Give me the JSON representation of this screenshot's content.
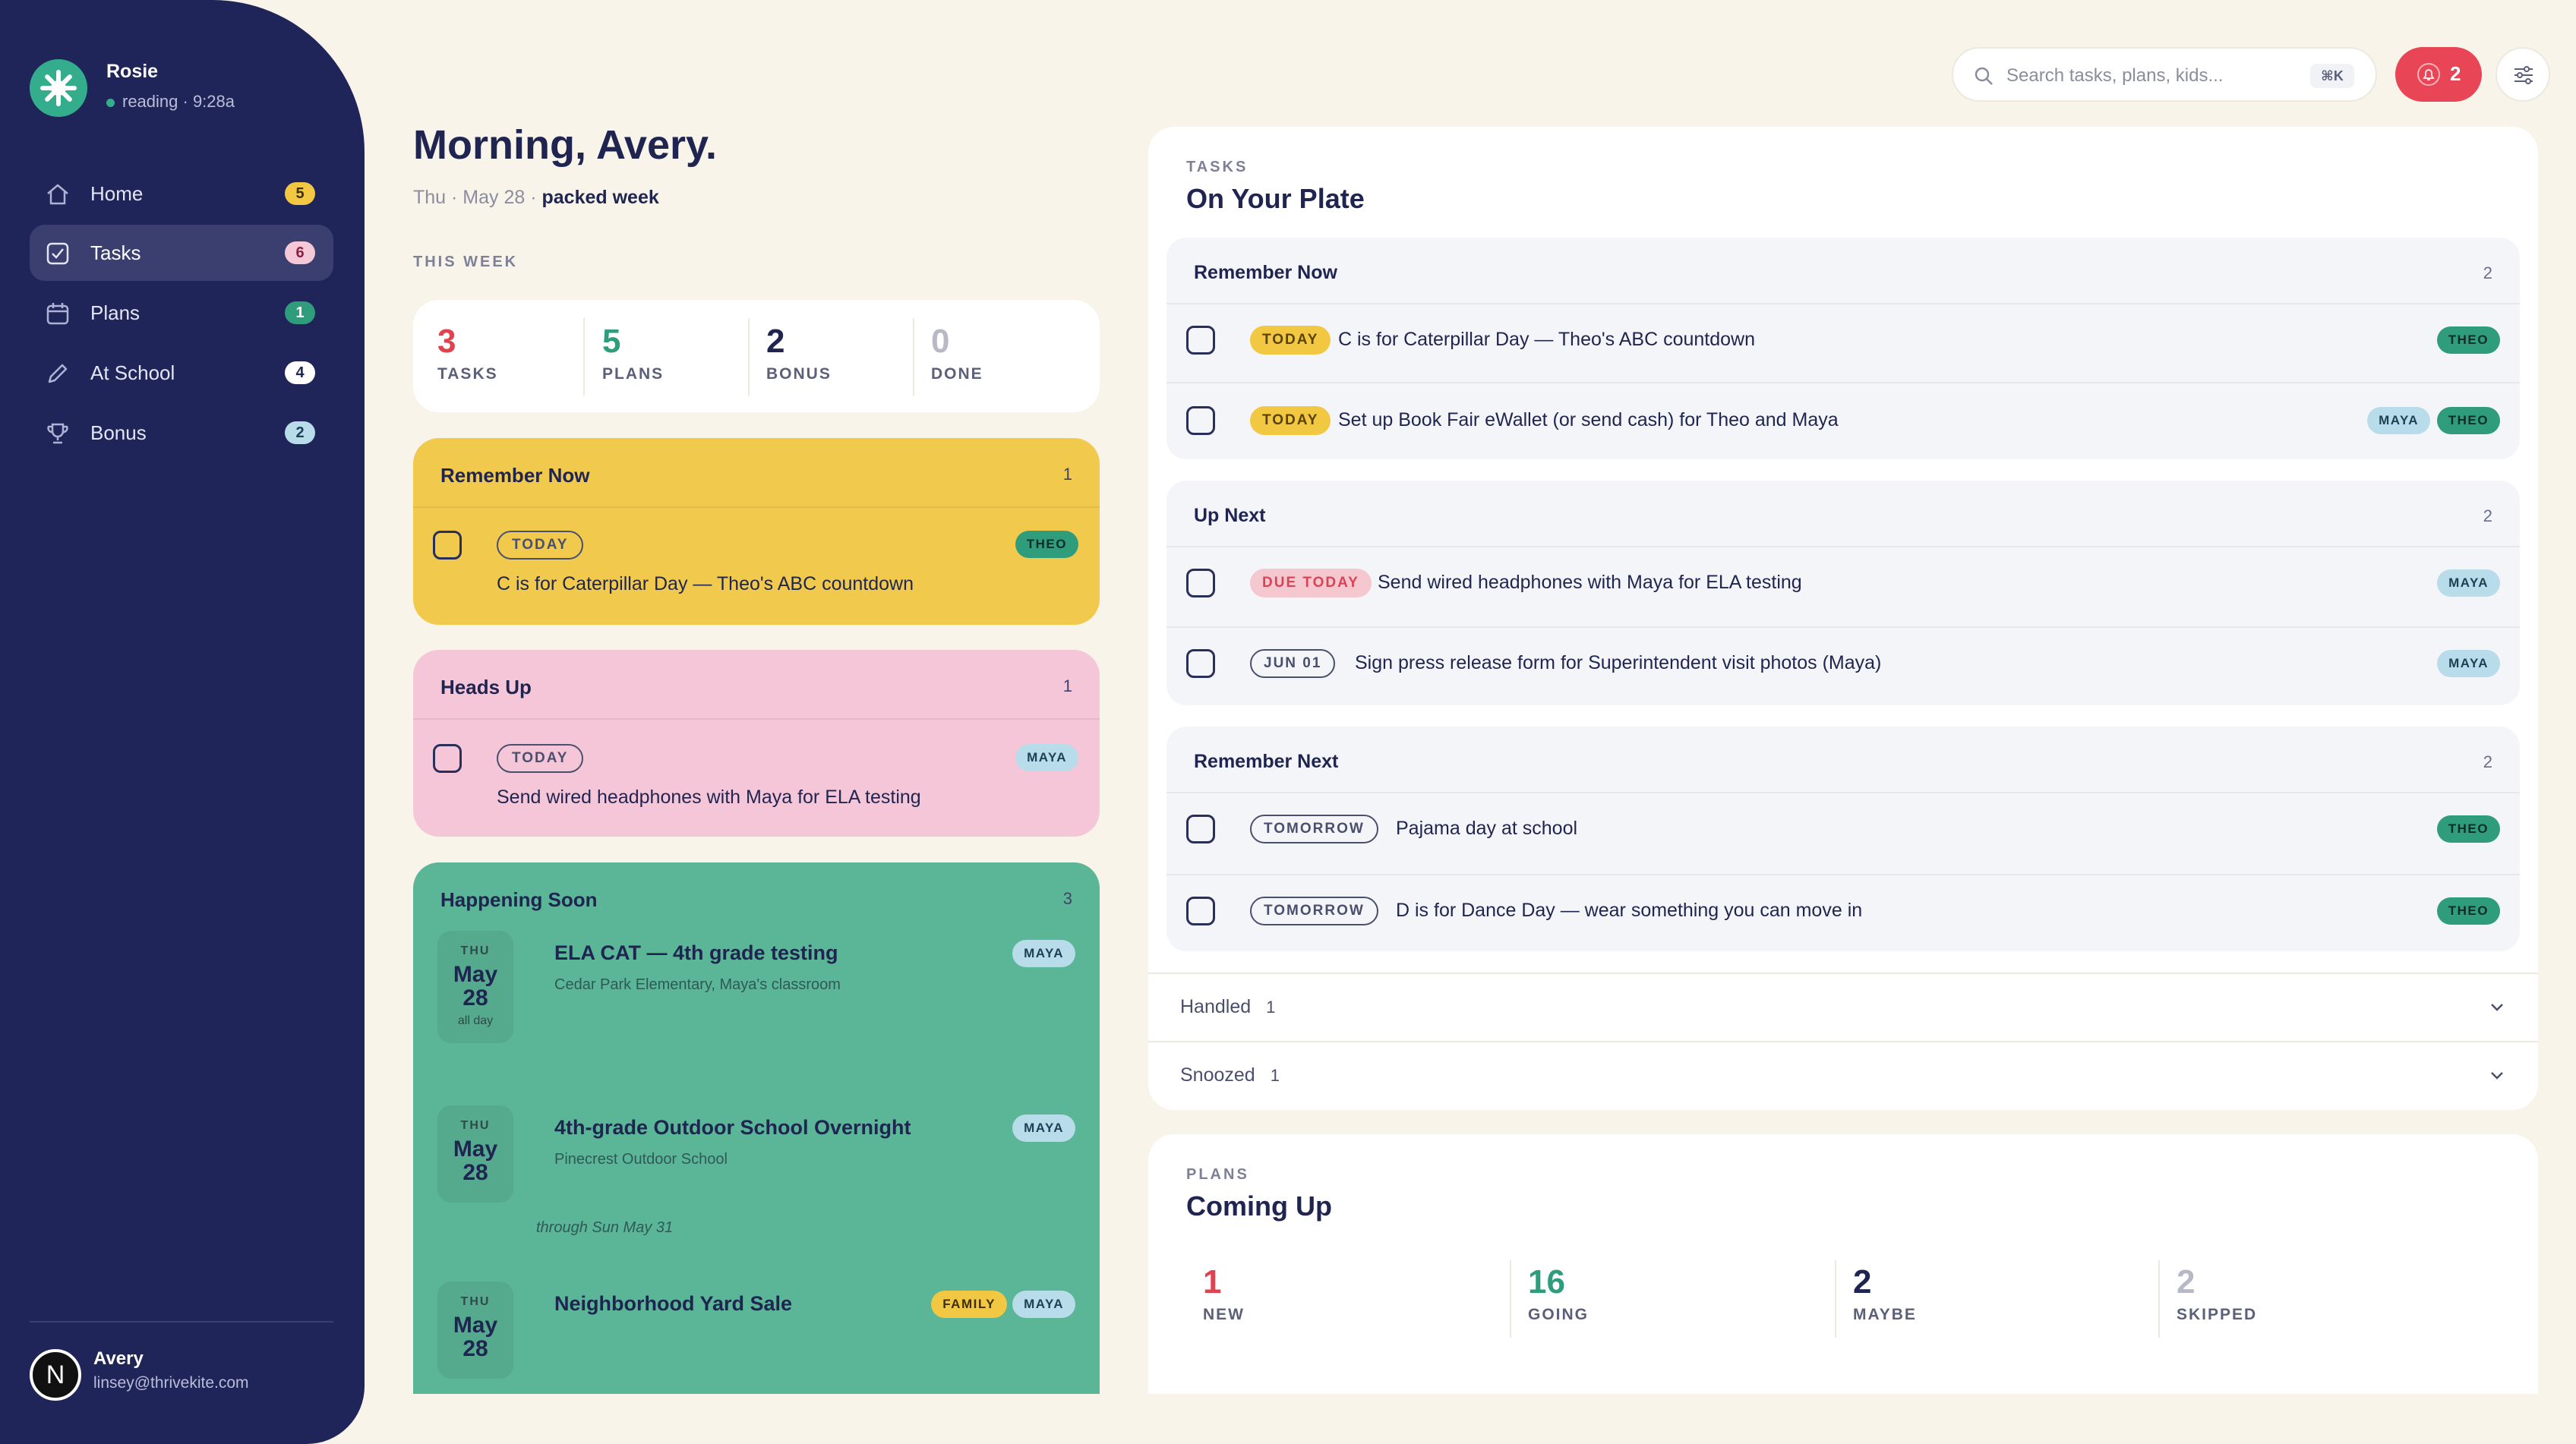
{
  "user": {
    "name": "Rosie",
    "status": "reading · 9:28a"
  },
  "nav": [
    {
      "label": "Home",
      "count": "5",
      "color": "#f2c842",
      "fg": "#3d3000"
    },
    {
      "label": "Tasks",
      "count": "6",
      "color": "#f5c8d8",
      "fg": "#8a2040"
    },
    {
      "label": "Plans",
      "count": "1",
      "color": "#2f9c7b",
      "fg": "#ffffff"
    },
    {
      "label": "At School",
      "count": "4",
      "color": "#ffffff",
      "fg": "#1f2550"
    },
    {
      "label": "Bonus",
      "count": "2",
      "color": "#b9dcea",
      "fg": "#1d4055"
    }
  ],
  "account": {
    "initial": "N",
    "name": "Avery",
    "email": "linsey@thrivekite.com"
  },
  "greeting": {
    "title": "Morning, Avery.",
    "date": "Thu · May 28 · ",
    "mood": "packed week"
  },
  "this_week": {
    "label": "THIS WEEK",
    "stats": [
      {
        "num": "3",
        "label": "TASKS",
        "color": "#e0424f"
      },
      {
        "num": "5",
        "label": "PLANS",
        "color": "#2f9c7b"
      },
      {
        "num": "2",
        "label": "BONUS",
        "color": "#1f2550"
      },
      {
        "num": "0",
        "label": "DONE",
        "color": "#b7b9c6"
      }
    ]
  },
  "remember_now_card": {
    "title": "Remember Now",
    "count": "1",
    "item": {
      "pill": "TODAY",
      "tag": "THEO",
      "text": "C is for Caterpillar Day — Theo's ABC countdown"
    }
  },
  "heads_up_card": {
    "title": "Heads Up",
    "count": "1",
    "item": {
      "pill": "TODAY",
      "tag": "MAYA",
      "text": "Send wired headphones with Maya for ELA testing"
    }
  },
  "happening_soon": {
    "title": "Happening Soon",
    "count": "3",
    "events": [
      {
        "dow": "THU",
        "month": "May",
        "day": "28",
        "allday": "all day",
        "title": "ELA CAT — 4th grade testing",
        "location": "Cedar Park Elementary, Maya's classroom",
        "tags": [
          "MAYA"
        ]
      },
      {
        "dow": "THU",
        "month": "May",
        "day": "28",
        "title": "4th-grade Outdoor School Overnight",
        "location": "Pinecrest Outdoor School",
        "through": "through Sun May 31",
        "tags": [
          "MAYA"
        ]
      },
      {
        "dow": "THU",
        "month": "May",
        "day": "28",
        "title": "Neighborhood Yard Sale",
        "tags": [
          "FAMILY",
          "MAYA"
        ]
      }
    ]
  },
  "topbar": {
    "search_placeholder": "Search tasks, plans, kids...",
    "shortcut": "⌘K",
    "notifications": "2"
  },
  "tasks_panel": {
    "eyebrow": "TASKS",
    "title": "On Your Plate",
    "groups": [
      {
        "title": "Remember Now",
        "count": "2",
        "items": [
          {
            "pill": "TODAY",
            "text": "C is for Caterpillar Day — Theo's ABC countdown",
            "tags": [
              "THEO"
            ]
          },
          {
            "pill": "TODAY",
            "text": "Set up Book Fair eWallet (or send cash) for Theo and Maya",
            "tags": [
              "MAYA",
              "THEO"
            ]
          }
        ]
      },
      {
        "title": "Up Next",
        "count": "2",
        "items": [
          {
            "pill": "DUE TODAY",
            "text": "Send wired headphones with Maya for ELA testing",
            "tags": [
              "MAYA"
            ]
          },
          {
            "pill": "JUN 01",
            "text": "Sign press release form for Superintendent visit photos (Maya)",
            "tags": [
              "MAYA"
            ]
          }
        ]
      },
      {
        "title": "Remember Next",
        "count": "2",
        "items": [
          {
            "pill": "TOMORROW",
            "text": "Pajama day at school",
            "tags": [
              "THEO"
            ]
          },
          {
            "pill": "TOMORROW",
            "text": "D is for Dance Day — wear something you can move in",
            "tags": [
              "THEO"
            ]
          }
        ]
      }
    ],
    "handled": {
      "label": "Handled",
      "count": "1"
    },
    "snoozed": {
      "label": "Snoozed",
      "count": "1"
    }
  },
  "plans_panel": {
    "eyebrow": "PLANS",
    "title": "Coming Up",
    "stats": [
      {
        "num": "1",
        "label": "NEW",
        "color": "#e0424f"
      },
      {
        "num": "16",
        "label": "GOING",
        "color": "#2f9c7b"
      },
      {
        "num": "2",
        "label": "MAYBE",
        "color": "#1f2550"
      },
      {
        "num": "2",
        "label": "SKIPPED",
        "color": "#b7b9c6"
      }
    ]
  }
}
